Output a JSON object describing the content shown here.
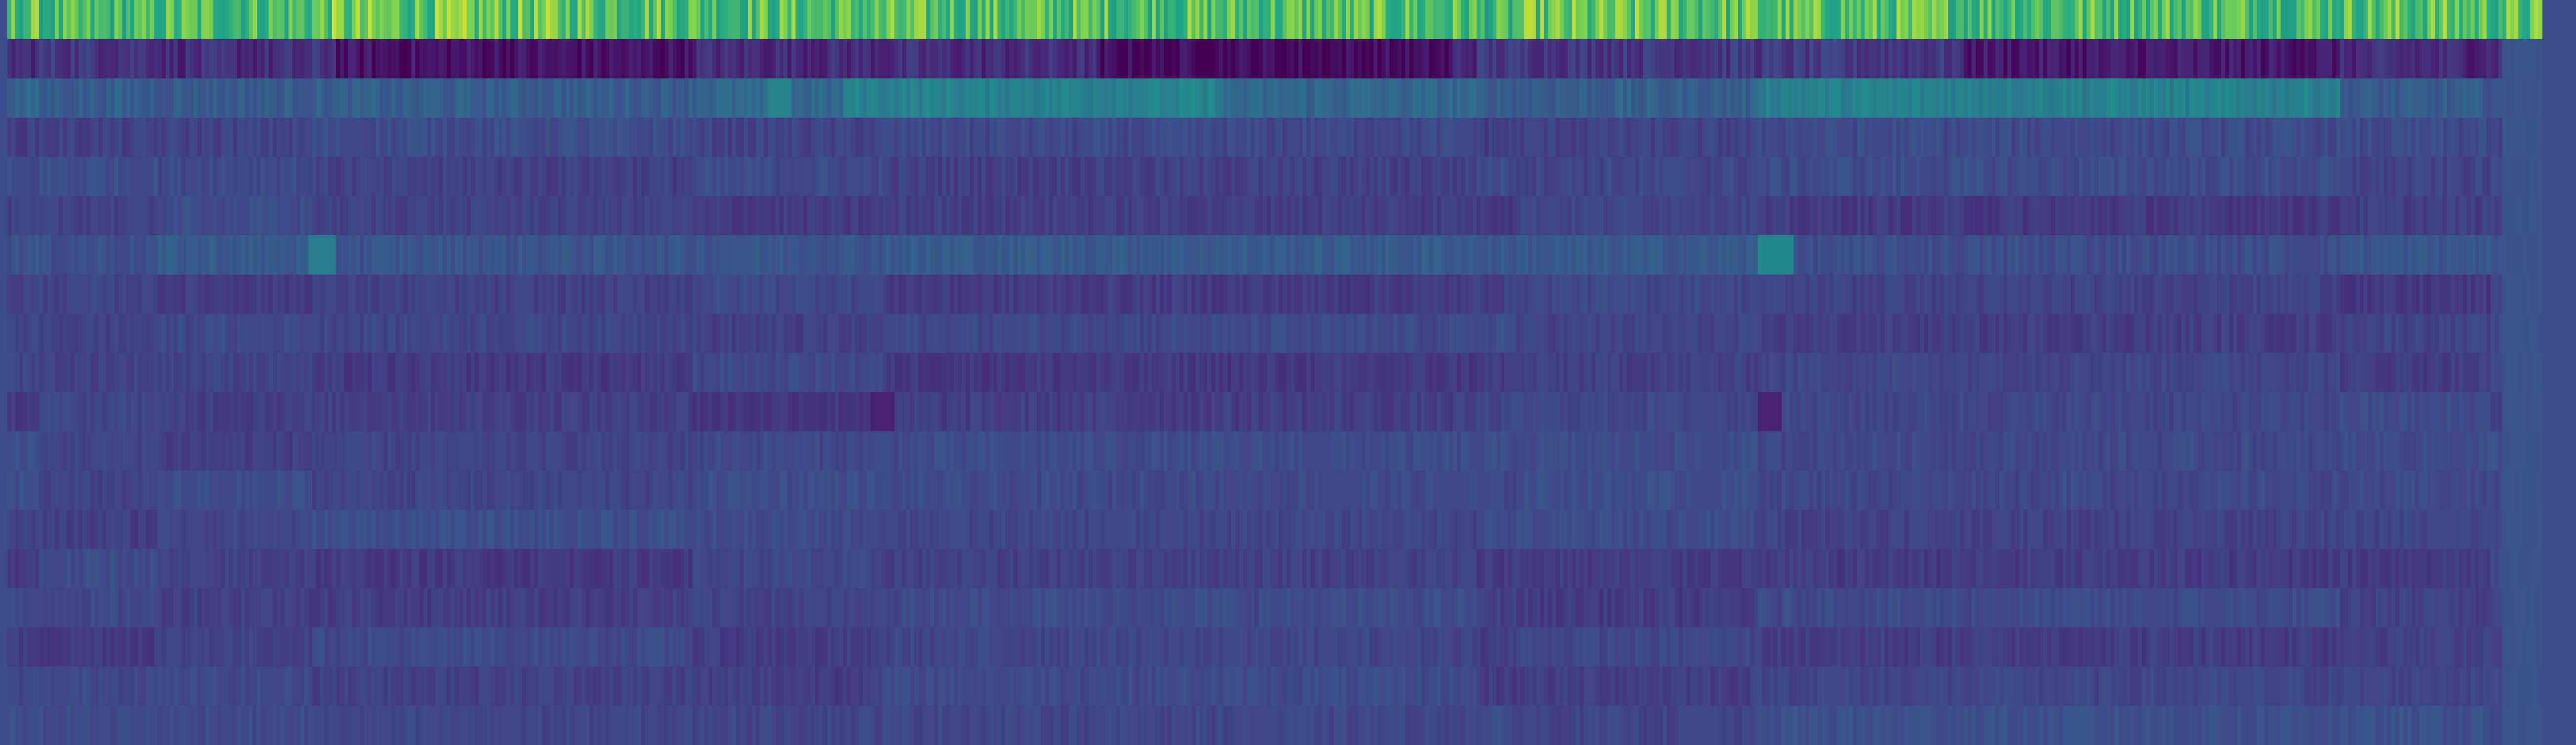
{
  "chart_data": {
    "type": "heatmap",
    "title": "",
    "xlabel": "",
    "ylabel": "",
    "colormap": "viridis",
    "n_rows": 19,
    "n_cols": 640,
    "value_range": [
      0,
      1
    ],
    "row_mean_levels": [
      0.8,
      0.18,
      0.38,
      0.25,
      0.27,
      0.25,
      0.33,
      0.24,
      0.25,
      0.24,
      0.24,
      0.27,
      0.28,
      0.26,
      0.25,
      0.25,
      0.24,
      0.26,
      0.27
    ],
    "row_variation": [
      0.12,
      0.08,
      0.06,
      0.05,
      0.05,
      0.04,
      0.05,
      0.04,
      0.04,
      0.04,
      0.04,
      0.04,
      0.04,
      0.04,
      0.04,
      0.04,
      0.04,
      0.04,
      0.04
    ],
    "segment_boundaries": [
      0.012,
      0.06,
      0.12,
      0.27,
      0.345,
      0.58,
      0.595,
      0.69,
      0.92,
      0.98
    ],
    "dark_row1_bands": [
      [
        0.13,
        0.18
      ],
      [
        0.18,
        0.27
      ],
      [
        0.43,
        0.57
      ],
      [
        0.77,
        0.92
      ]
    ],
    "bright_row2_bands": [
      [
        0.33,
        0.48
      ],
      [
        0.69,
        0.92
      ]
    ],
    "highlight_cells": [
      {
        "row": 6,
        "from": 0.118,
        "to": 0.13,
        "level": 0.52
      },
      {
        "row": 6,
        "from": 0.69,
        "to": 0.705,
        "level": 0.58
      },
      {
        "row": 10,
        "from": 0.34,
        "to": 0.35,
        "level": 0.12
      },
      {
        "row": 10,
        "from": 0.69,
        "to": 0.7,
        "level": 0.12
      },
      {
        "row": 2,
        "from": 0.3,
        "to": 0.31,
        "level": 0.55
      },
      {
        "row": 2,
        "from": 0.33,
        "to": 0.335,
        "level": 0.55
      }
    ],
    "right_trailing_region": {
      "from": 0.985,
      "to": 1.0,
      "level": 0.32
    },
    "legend": "none",
    "grid": false
  }
}
